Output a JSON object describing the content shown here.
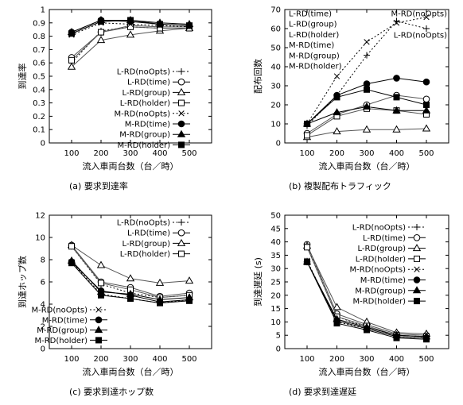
{
  "chart_data": [
    {
      "type": "line",
      "caption": "(a)  要求到達率",
      "xlabel": "流入車両台数（台／時）",
      "ylabel": "到達率",
      "x": [
        100,
        200,
        300,
        400,
        500
      ],
      "xticks": [
        "100",
        "200",
        "300",
        "400",
        "500"
      ],
      "ylim": [
        0,
        1
      ],
      "yticks": [
        "0",
        "0.1",
        "0.2",
        "0.3",
        "0.4",
        "0.5",
        "0.6",
        "0.7",
        "0.8",
        "0.9",
        "1"
      ],
      "legend_position": "right",
      "series": [
        {
          "name": "L-RD(noOpts)",
          "values": [
            0.6,
            0.84,
            0.87,
            0.86,
            0.86
          ]
        },
        {
          "name": "L-RD(time)",
          "values": [
            0.64,
            0.83,
            0.88,
            0.87,
            0.87
          ]
        },
        {
          "name": "L-RD(group)",
          "values": [
            0.57,
            0.77,
            0.81,
            0.84,
            0.86
          ]
        },
        {
          "name": "L-RD(holder)",
          "values": [
            0.62,
            0.83,
            0.87,
            0.86,
            0.86
          ]
        },
        {
          "name": "M-RD(noOpts)",
          "values": [
            0.81,
            0.9,
            0.89,
            0.88,
            0.87
          ]
        },
        {
          "name": "M-RD(time)",
          "values": [
            0.83,
            0.92,
            0.91,
            0.89,
            0.88
          ]
        },
        {
          "name": "M-RD(group)",
          "values": [
            0.83,
            0.92,
            0.92,
            0.9,
            0.89
          ]
        },
        {
          "name": "M-RD(holder)",
          "values": [
            0.82,
            0.91,
            0.92,
            0.89,
            0.88
          ]
        }
      ]
    },
    {
      "type": "line",
      "caption": "(b)  複製配布トラフィック",
      "xlabel": "流入車両台数（台／時）",
      "ylabel": "配布回数",
      "x": [
        100,
        200,
        300,
        400,
        500
      ],
      "xticks": [
        "100",
        "200",
        "300",
        "400",
        "500"
      ],
      "ylim": [
        0,
        70
      ],
      "yticks": [
        "0",
        "10",
        "20",
        "30",
        "40",
        "50",
        "60",
        "70"
      ],
      "legend_position": "top",
      "series": [
        {
          "name": "L-RD(noOpts)",
          "values": [
            9,
            25,
            46,
            64,
            60
          ]
        },
        {
          "name": "L-RD(time)",
          "values": [
            5,
            15,
            20,
            25,
            23
          ]
        },
        {
          "name": "L-RD(group)",
          "values": [
            3,
            6,
            7,
            7,
            7.5
          ]
        },
        {
          "name": "L-RD(holder)",
          "values": [
            4,
            14,
            18,
            17,
            15
          ]
        },
        {
          "name": "M-RD(noOpts)",
          "values": [
            10,
            35,
            53,
            63,
            66
          ]
        },
        {
          "name": "M-RD(time)",
          "values": [
            10,
            25,
            31,
            34,
            32
          ]
        },
        {
          "name": "M-RD(group)",
          "values": [
            10,
            16,
            19,
            17,
            17
          ]
        },
        {
          "name": "M-RD(holder)",
          "values": [
            10,
            24,
            28,
            24,
            20
          ]
        }
      ]
    },
    {
      "type": "line",
      "caption": "(c)  要求到達ホップ数",
      "xlabel": "流入車両台数（台／時）",
      "ylabel": "到達ホップ数",
      "x": [
        100,
        200,
        300,
        400,
        500
      ],
      "xticks": [
        "100",
        "200",
        "300",
        "400",
        "500"
      ],
      "ylim": [
        0,
        12
      ],
      "yticks": [
        "0",
        "2",
        "4",
        "6",
        "8",
        "10",
        "12"
      ],
      "legend_position": "split",
      "series": [
        {
          "name": "L-RD(noOpts)",
          "values": [
            9.2,
            5.8,
            5.0,
            4.6,
            4.8
          ]
        },
        {
          "name": "L-RD(time)",
          "values": [
            9.3,
            6.0,
            5.5,
            4.7,
            5.0
          ]
        },
        {
          "name": "L-RD(group)",
          "values": [
            9.3,
            7.5,
            6.3,
            5.9,
            6.1
          ]
        },
        {
          "name": "L-RD(holder)",
          "values": [
            9.2,
            5.9,
            5.3,
            4.6,
            4.8
          ]
        },
        {
          "name": "M-RD(noOpts)",
          "values": [
            7.8,
            4.9,
            4.5,
            4.1,
            4.4
          ]
        },
        {
          "name": "M-RD(time)",
          "values": [
            7.8,
            5.2,
            4.8,
            4.2,
            4.4
          ]
        },
        {
          "name": "M-RD(group)",
          "values": [
            7.9,
            5.1,
            4.9,
            4.4,
            4.6
          ]
        },
        {
          "name": "M-RD(holder)",
          "values": [
            7.7,
            4.8,
            4.5,
            4.1,
            4.3
          ]
        }
      ]
    },
    {
      "type": "line",
      "caption": "(d)  要求到達遅延",
      "xlabel": "流入車両台数（台／時）",
      "ylabel": "到達遅延 (s)",
      "x": [
        100,
        200,
        300,
        400,
        500
      ],
      "xticks": [
        "100",
        "200",
        "300",
        "400",
        "500"
      ],
      "ylim": [
        0,
        50
      ],
      "yticks": [
        "0",
        "5",
        "10",
        "15",
        "20",
        "25",
        "30",
        "35",
        "40",
        "45",
        "50"
      ],
      "legend_position": "top-right",
      "series": [
        {
          "name": "L-RD(noOpts)",
          "values": [
            38.5,
            12,
            8,
            5,
            4.5
          ]
        },
        {
          "name": "L-RD(time)",
          "values": [
            39,
            13,
            9,
            5.5,
            5
          ]
        },
        {
          "name": "L-RD(group)",
          "values": [
            38.5,
            15.5,
            10,
            6,
            5.5
          ]
        },
        {
          "name": "L-RD(holder)",
          "values": [
            38,
            12,
            8.5,
            5,
            4.5
          ]
        },
        {
          "name": "M-RD(noOpts)",
          "values": [
            33,
            10,
            7.5,
            4.5,
            4
          ]
        },
        {
          "name": "M-RD(time)",
          "values": [
            32.5,
            10.5,
            7.5,
            4.5,
            4
          ]
        },
        {
          "name": "M-RD(group)",
          "values": [
            32.5,
            11,
            8,
            5,
            4.5
          ]
        },
        {
          "name": "M-RD(holder)",
          "values": [
            32.5,
            9.5,
            7,
            4,
            3.5
          ]
        }
      ]
    }
  ]
}
